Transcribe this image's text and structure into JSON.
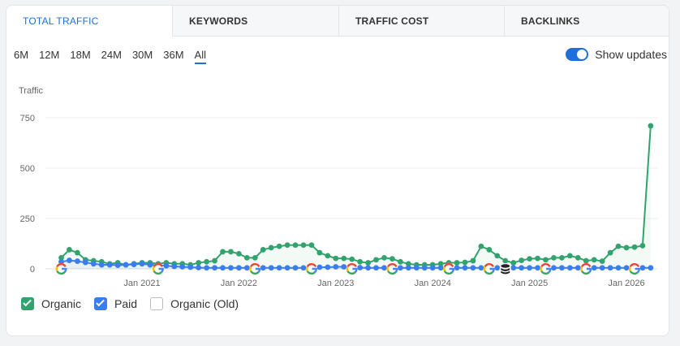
{
  "tabs": [
    {
      "label": "TOTAL TRAFFIC",
      "active": true
    },
    {
      "label": "KEYWORDS",
      "active": false
    },
    {
      "label": "TRAFFIC COST",
      "active": false
    },
    {
      "label": "BACKLINKS",
      "active": false
    }
  ],
  "ranges": [
    {
      "label": "6M",
      "active": false
    },
    {
      "label": "12M",
      "active": false
    },
    {
      "label": "18M",
      "active": false
    },
    {
      "label": "24M",
      "active": false
    },
    {
      "label": "30M",
      "active": false
    },
    {
      "label": "36M",
      "active": false
    },
    {
      "label": "All",
      "active": true
    }
  ],
  "show_updates": {
    "label": "Show updates",
    "enabled": true
  },
  "legend": [
    {
      "label": "Organic",
      "checked": true,
      "color": "#33a36e"
    },
    {
      "label": "Paid",
      "checked": true,
      "color": "#3b7cf0"
    },
    {
      "label": "Organic (Old)",
      "checked": false,
      "color": "#b8bcc2"
    }
  ],
  "chart_data": {
    "type": "line",
    "ylabel": "Traffic",
    "ylim": [
      0,
      750
    ],
    "yticks": [
      0,
      250,
      500,
      750
    ],
    "xticks": [
      "Jan 2021",
      "Jan 2022",
      "Jan 2023",
      "Jan 2024",
      "Jan 2025",
      "Jan 2026"
    ],
    "xrange": [
      "2020-02",
      "2026-04"
    ],
    "grid": true,
    "series": [
      {
        "name": "Organic",
        "color": "#33a36e",
        "x": [
          "2020-03",
          "2020-04",
          "2020-05",
          "2020-06",
          "2020-07",
          "2020-08",
          "2020-09",
          "2020-10",
          "2020-11",
          "2020-12",
          "2021-01",
          "2021-02",
          "2021-03",
          "2021-04",
          "2021-05",
          "2021-06",
          "2021-07",
          "2021-08",
          "2021-09",
          "2021-10",
          "2021-11",
          "2021-12",
          "2022-01",
          "2022-02",
          "2022-03",
          "2022-04",
          "2022-05",
          "2022-06",
          "2022-07",
          "2022-08",
          "2022-09",
          "2022-10",
          "2022-11",
          "2022-12",
          "2023-01",
          "2023-02",
          "2023-03",
          "2023-04",
          "2023-05",
          "2023-06",
          "2023-07",
          "2023-08",
          "2023-09",
          "2023-10",
          "2023-11",
          "2023-12",
          "2024-01",
          "2024-02",
          "2024-03",
          "2024-04",
          "2024-05",
          "2024-06",
          "2024-07",
          "2024-08",
          "2024-09",
          "2024-10",
          "2024-11",
          "2024-12",
          "2025-01",
          "2025-02",
          "2025-03",
          "2025-04",
          "2025-05",
          "2025-06",
          "2025-07",
          "2025-08",
          "2025-09",
          "2025-10",
          "2025-11",
          "2025-12",
          "2026-01",
          "2026-02",
          "2026-03",
          "2026-04"
        ],
        "values": [
          55,
          95,
          80,
          45,
          40,
          35,
          25,
          30,
          20,
          25,
          30,
          30,
          25,
          30,
          25,
          25,
          20,
          30,
          35,
          40,
          85,
          85,
          75,
          55,
          55,
          95,
          105,
          112,
          118,
          118,
          118,
          118,
          80,
          65,
          52,
          52,
          48,
          35,
          30,
          45,
          55,
          50,
          35,
          25,
          20,
          20,
          20,
          25,
          30,
          30,
          32,
          40,
          112,
          95,
          65,
          40,
          30,
          42,
          50,
          52,
          45,
          55,
          55,
          65,
          55,
          40,
          45,
          38,
          80,
          112,
          105,
          108,
          115,
          710
        ]
      },
      {
        "name": "Paid",
        "color": "#3b7cf0",
        "x": [
          "2020-03",
          "2020-04",
          "2020-05",
          "2020-06",
          "2020-07",
          "2020-08",
          "2020-09",
          "2020-10",
          "2020-11",
          "2020-12",
          "2021-01",
          "2021-02",
          "2021-03",
          "2021-04",
          "2021-05",
          "2021-06",
          "2021-07",
          "2021-08",
          "2021-09",
          "2021-10",
          "2021-11",
          "2021-12",
          "2022-01",
          "2022-02",
          "2022-03",
          "2022-04",
          "2022-05",
          "2022-06",
          "2022-07",
          "2022-08",
          "2022-09",
          "2022-10",
          "2022-11",
          "2022-12",
          "2023-01",
          "2023-02",
          "2023-03",
          "2023-04",
          "2023-05",
          "2023-06",
          "2023-07",
          "2023-08",
          "2023-09",
          "2023-10",
          "2023-11",
          "2023-12",
          "2024-01",
          "2024-02",
          "2024-03",
          "2024-04",
          "2024-05",
          "2024-06",
          "2024-07",
          "2024-08",
          "2024-09",
          "2024-10",
          "2024-11",
          "2024-12",
          "2025-01",
          "2025-02",
          "2025-03",
          "2025-04",
          "2025-05",
          "2025-06",
          "2025-07",
          "2025-08",
          "2025-09",
          "2025-10",
          "2025-11",
          "2025-12",
          "2026-01",
          "2026-02",
          "2026-03",
          "2026-04"
        ],
        "values": [
          35,
          42,
          38,
          32,
          25,
          20,
          20,
          18,
          20,
          22,
          25,
          20,
          18,
          15,
          12,
          10,
          8,
          6,
          5,
          5,
          5,
          5,
          5,
          5,
          5,
          5,
          5,
          5,
          5,
          5,
          5,
          5,
          8,
          8,
          10,
          10,
          8,
          6,
          5,
          5,
          5,
          5,
          5,
          5,
          5,
          5,
          5,
          5,
          5,
          5,
          5,
          5,
          5,
          5,
          5,
          5,
          5,
          5,
          5,
          5,
          5,
          5,
          5,
          5,
          5,
          5,
          5,
          5,
          5,
          5,
          5,
          5,
          5,
          5
        ]
      }
    ],
    "annotations": {
      "google_update_icon": "google-g-icon",
      "database_update_icon": "database-icon",
      "google_updates": [
        "2020-03",
        "2021-03",
        "2022-03",
        "2022-10",
        "2023-03",
        "2023-08",
        "2024-03",
        "2024-08",
        "2025-03",
        "2025-08",
        "2026-02"
      ],
      "database_updates": [
        "2024-10"
      ]
    }
  }
}
